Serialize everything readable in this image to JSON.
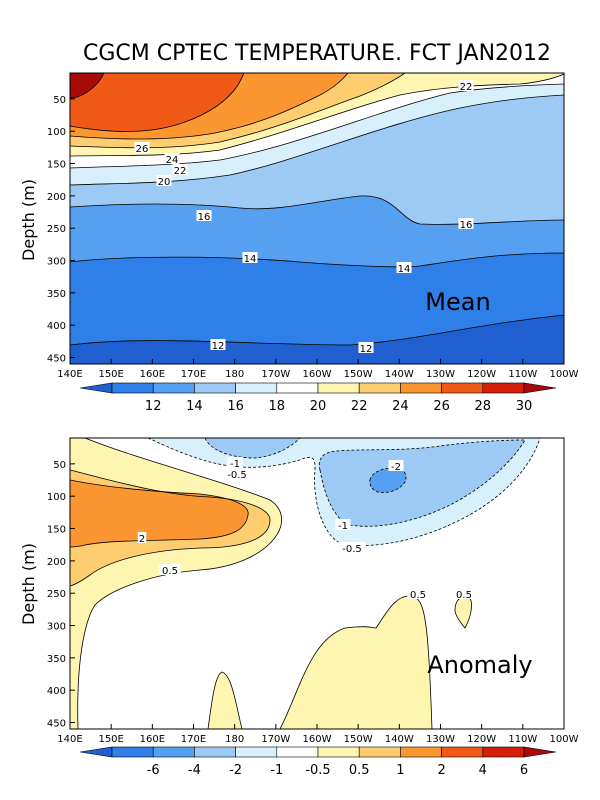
{
  "title": "CGCM CPTEC TEMPERATURE. FCT JAN2012",
  "chart_data": [
    {
      "type": "contour",
      "panel": "Mean",
      "ylabel": "Depth (m)",
      "annotation": "Mean",
      "x_ticks": [
        "140E",
        "150E",
        "160E",
        "170E",
        "180",
        "170W",
        "160W",
        "150W",
        "140W",
        "130W",
        "120W",
        "110W",
        "100W"
      ],
      "y_ticks": [
        "50",
        "100",
        "150",
        "200",
        "250",
        "300",
        "350",
        "400",
        "450"
      ],
      "ylim": [
        10,
        460
      ],
      "colorbar": [
        "12",
        "14",
        "16",
        "18",
        "20",
        "22",
        "24",
        "26",
        "28",
        "30"
      ],
      "colors": [
        "#1f5fd0",
        "#2f7fe8",
        "#55a0f0",
        "#9ccaf5",
        "#d8f0fb",
        "#ffffff",
        "#fdf5b0",
        "#fdcd70",
        "#fc9630",
        "#f05a16",
        "#d51f0a",
        "#a80a08"
      ],
      "contour_labels": [
        {
          "text": "22"
        },
        {
          "text": "26"
        },
        {
          "text": "24"
        },
        {
          "text": "22"
        },
        {
          "text": "20"
        },
        {
          "text": "16"
        },
        {
          "text": "16"
        },
        {
          "text": "14"
        },
        {
          "text": "14"
        },
        {
          "text": "12"
        },
        {
          "text": "12"
        }
      ]
    },
    {
      "type": "contour",
      "panel": "Anomaly",
      "ylabel": "Depth (m)",
      "annotation": "Anomaly",
      "x_ticks": [
        "140E",
        "150E",
        "160E",
        "170E",
        "180",
        "170W",
        "160W",
        "150W",
        "140W",
        "130W",
        "120W",
        "110W",
        "100W"
      ],
      "y_ticks": [
        "50",
        "100",
        "150",
        "200",
        "250",
        "300",
        "350",
        "400",
        "450"
      ],
      "ylim": [
        10,
        460
      ],
      "colorbar": [
        "-6",
        "-4",
        "-2",
        "-1",
        "-0.5",
        "0.5",
        "1",
        "2",
        "4",
        "6"
      ],
      "colors": [
        "#1f5fd0",
        "#2f7fe8",
        "#55a0f0",
        "#9ccaf5",
        "#d8f0fb",
        "#ffffff",
        "#fdf5b0",
        "#fdcd70",
        "#fc9630",
        "#f05a16",
        "#d51f0a",
        "#a80a08"
      ],
      "contour_labels": [
        {
          "text": "-1"
        },
        {
          "text": "-0.5"
        },
        {
          "text": "-2"
        },
        {
          "text": "-1"
        },
        {
          "text": "-0.5"
        },
        {
          "text": "2"
        },
        {
          "text": "0.5"
        },
        {
          "text": "0.5"
        },
        {
          "text": "0.5"
        }
      ]
    }
  ]
}
